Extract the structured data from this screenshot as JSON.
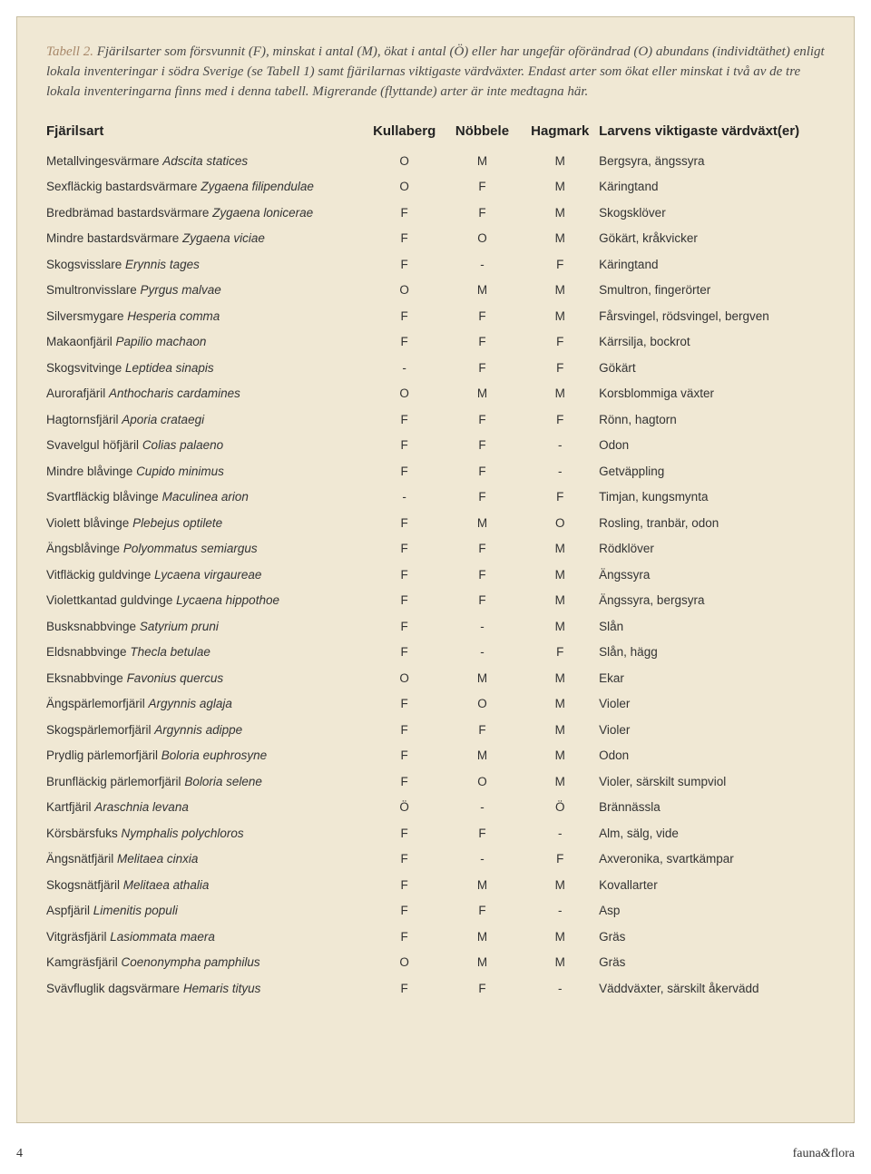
{
  "caption": {
    "lead": "Tabell 2.",
    "text": " Fjärilsarter som försvunnit (F), minskat i antal (M), ökat i antal (Ö) eller har ungefär oförändrad (O) abundans (individtäthet) enligt lokala inventeringar i södra Sverige (se Tabell 1) samt fjärilarnas viktigaste värdväxter. Endast arter som ökat eller minskat i två av de tre lokala inventeringarna finns med i denna tabell. Migrerande (flyttande) arter är inte medtagna här."
  },
  "headers": {
    "species": "Fjärilsart",
    "loc1": "Kullaberg",
    "loc2": "Nöbbele",
    "loc3": "Hagmark",
    "plant": "Larvens viktigaste värdväxt(er)"
  },
  "rows": [
    {
      "common": "Metallvingesvärmare ",
      "sci": "Adscita statices",
      "l1": "O",
      "l2": "M",
      "l3": "M",
      "plant": "Bergsyra, ängssyra"
    },
    {
      "common": "Sexfläckig bastardsvärmare ",
      "sci": "Zygaena filipendulae",
      "l1": "O",
      "l2": "F",
      "l3": "M",
      "plant": "Käringtand"
    },
    {
      "common": "Bredbrämad bastardsvärmare ",
      "sci": "Zygaena lonicerae",
      "l1": "F",
      "l2": "F",
      "l3": "M",
      "plant": "Skogsklöver"
    },
    {
      "common": "Mindre bastardsvärmare ",
      "sci": "Zygaena viciae",
      "l1": "F",
      "l2": "O",
      "l3": "M",
      "plant": "Gökärt, kråkvicker"
    },
    {
      "common": "Skogsvisslare ",
      "sci": "Erynnis tages",
      "l1": "F",
      "l2": "-",
      "l3": "F",
      "plant": "Käringtand"
    },
    {
      "common": "Smultronvisslare ",
      "sci": "Pyrgus malvae",
      "l1": "O",
      "l2": "M",
      "l3": "M",
      "plant": "Smultron, fingerörter"
    },
    {
      "common": "Silversmygare ",
      "sci": "Hesperia comma",
      "l1": "F",
      "l2": "F",
      "l3": "M",
      "plant": "Fårsvingel, rödsvingel, bergven"
    },
    {
      "common": "Makaonfjäril ",
      "sci": "Papilio machaon",
      "l1": "F",
      "l2": "F",
      "l3": "F",
      "plant": "Kärrsilja, bockrot"
    },
    {
      "common": "Skogsvitvinge ",
      "sci": "Leptidea sinapis",
      "l1": "-",
      "l2": "F",
      "l3": "F",
      "plant": "Gökärt"
    },
    {
      "common": "Aurorafjäril ",
      "sci": "Anthocharis cardamines",
      "l1": "O",
      "l2": "M",
      "l3": "M",
      "plant": "Korsblommiga växter"
    },
    {
      "common": "Hagtornsfjäril ",
      "sci": "Aporia crataegi",
      "l1": "F",
      "l2": "F",
      "l3": "F",
      "plant": "Rönn, hagtorn"
    },
    {
      "common": "Svavelgul höfjäril ",
      "sci": "Colias palaeno",
      "l1": "F",
      "l2": "F",
      "l3": "-",
      "plant": "Odon"
    },
    {
      "common": "Mindre blåvinge ",
      "sci": "Cupido minimus",
      "l1": "F",
      "l2": "F",
      "l3": "-",
      "plant": "Getväppling"
    },
    {
      "common": "Svartfläckig blåvinge ",
      "sci": "Maculinea arion",
      "l1": "-",
      "l2": "F",
      "l3": "F",
      "plant": "Timjan, kungsmynta"
    },
    {
      "common": "Violett blåvinge ",
      "sci": "Plebejus optilete",
      "l1": "F",
      "l2": "M",
      "l3": "O",
      "plant": "Rosling, tranbär, odon"
    },
    {
      "common": "Ängsblåvinge ",
      "sci": "Polyommatus semiargus",
      "l1": "F",
      "l2": "F",
      "l3": "M",
      "plant": "Rödklöver"
    },
    {
      "common": "Vitfläckig guldvinge ",
      "sci": "Lycaena virgaureae",
      "l1": "F",
      "l2": "F",
      "l3": "M",
      "plant": "Ängssyra"
    },
    {
      "common": "Violettkantad guldvinge ",
      "sci": "Lycaena hippothoe",
      "l1": "F",
      "l2": "F",
      "l3": "M",
      "plant": "Ängssyra, bergsyra"
    },
    {
      "common": "Busksnabbvinge ",
      "sci": "Satyrium pruni",
      "l1": "F",
      "l2": "-",
      "l3": "M",
      "plant": "Slån"
    },
    {
      "common": "Eldsnabbvinge ",
      "sci": "Thecla betulae",
      "l1": "F",
      "l2": "-",
      "l3": "F",
      "plant": "Slån, hägg"
    },
    {
      "common": "Eksnabbvinge ",
      "sci": "Favonius quercus",
      "l1": "O",
      "l2": "M",
      "l3": "M",
      "plant": "Ekar"
    },
    {
      "common": "Ängspärlemorfjäril ",
      "sci": "Argynnis aglaja",
      "l1": "F",
      "l2": "O",
      "l3": "M",
      "plant": "Violer"
    },
    {
      "common": "Skogspärlemorfjäril ",
      "sci": "Argynnis adippe",
      "l1": "F",
      "l2": "F",
      "l3": "M",
      "plant": "Violer"
    },
    {
      "common": "Prydlig pärlemorfjäril ",
      "sci": "Boloria euphrosyne",
      "l1": "F",
      "l2": "M",
      "l3": "M",
      "plant": "Odon"
    },
    {
      "common": "Brunfläckig pärlemorfjäril ",
      "sci": "Boloria selene",
      "l1": "F",
      "l2": "O",
      "l3": "M",
      "plant": "Violer, särskilt sumpviol"
    },
    {
      "common": "Kartfjäril ",
      "sci": "Araschnia levana",
      "l1": "Ö",
      "l2": "-",
      "l3": "Ö",
      "plant": "Brännässla"
    },
    {
      "common": "Körsbärsfuks ",
      "sci": "Nymphalis polychloros",
      "l1": "F",
      "l2": "F",
      "l3": "-",
      "plant": "Alm, sälg, vide"
    },
    {
      "common": "Ängsnätfjäril ",
      "sci": "Melitaea cinxia",
      "l1": "F",
      "l2": "-",
      "l3": "F",
      "plant": "Axveronika, svartkämpar"
    },
    {
      "common": "Skogsnätfjäril ",
      "sci": "Melitaea athalia",
      "l1": "F",
      "l2": "M",
      "l3": "M",
      "plant": "Kovallarter"
    },
    {
      "common": "Aspfjäril ",
      "sci": "Limenitis populi",
      "l1": "F",
      "l2": "F",
      "l3": "-",
      "plant": "Asp"
    },
    {
      "common": "Vitgräsfjäril ",
      "sci": "Lasiommata maera",
      "l1": "F",
      "l2": "M",
      "l3": "M",
      "plant": "Gräs"
    },
    {
      "common": "Kamgräsfjäril ",
      "sci": "Coenonympha pamphilus",
      "l1": "O",
      "l2": "M",
      "l3": "M",
      "plant": "Gräs"
    },
    {
      "common": "Svävfluglik dagsvärmare ",
      "sci": "Hemaris tityus",
      "l1": "F",
      "l2": "F",
      "l3": "-",
      "plant": "Väddväxter, särskilt åkervädd"
    }
  ],
  "footer": {
    "page": "4",
    "brand_a": "fauna",
    "brand_amp": "&",
    "brand_b": "flora"
  },
  "colors": {
    "box_bg": "#f0e8d4",
    "box_border": "#c8bda0",
    "lead": "#a8886a",
    "text": "#333333"
  }
}
